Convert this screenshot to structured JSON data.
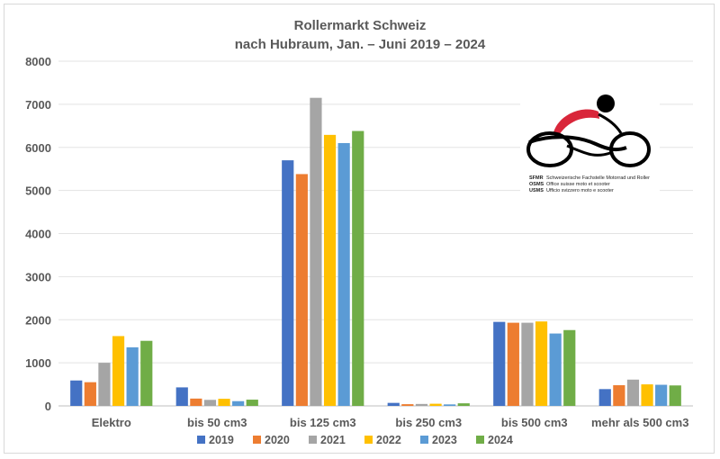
{
  "chart_data": {
    "type": "bar",
    "title": "Rollermarkt Schweiz",
    "subtitle": "nach Hubraum, Jan. – Juni 2019 – 2024",
    "xlabel": "",
    "ylabel": "",
    "ylim": [
      0,
      8000
    ],
    "yticks": [
      0,
      1000,
      2000,
      3000,
      4000,
      5000,
      6000,
      7000,
      8000
    ],
    "grid": true,
    "legend": "bottom",
    "categories": [
      "Elektro",
      "bis 50 cm3",
      "bis 125 cm3",
      "bis 250 cm3",
      "bis 500 cm3",
      "mehr als 500 cm3"
    ],
    "series": [
      {
        "name": "2019",
        "color": "#4472c4",
        "values": [
          590,
          430,
          5700,
          70,
          1950,
          390
        ]
      },
      {
        "name": "2020",
        "color": "#ed7d31",
        "values": [
          550,
          170,
          5380,
          40,
          1930,
          480
        ]
      },
      {
        "name": "2021",
        "color": "#a5a5a5",
        "values": [
          1000,
          140,
          7150,
          45,
          1930,
          610
        ]
      },
      {
        "name": "2022",
        "color": "#ffc000",
        "values": [
          1620,
          165,
          6290,
          50,
          1960,
          500
        ]
      },
      {
        "name": "2023",
        "color": "#5b9bd5",
        "values": [
          1360,
          110,
          6100,
          35,
          1680,
          490
        ]
      },
      {
        "name": "2024",
        "color": "#70ad47",
        "values": [
          1510,
          145,
          6380,
          60,
          1760,
          475
        ]
      }
    ]
  },
  "logo": {
    "lines": [
      {
        "abbr": "SFMR",
        "text": "Schweizerische Fachstelle Motorrad und Roller"
      },
      {
        "abbr": "OSMS",
        "text": "Office suisse moto et scooter"
      },
      {
        "abbr": "USMS",
        "text": "Ufficio svizzero moto e scooter"
      }
    ],
    "colors": {
      "red": "#d9263a",
      "black": "#000000"
    }
  }
}
